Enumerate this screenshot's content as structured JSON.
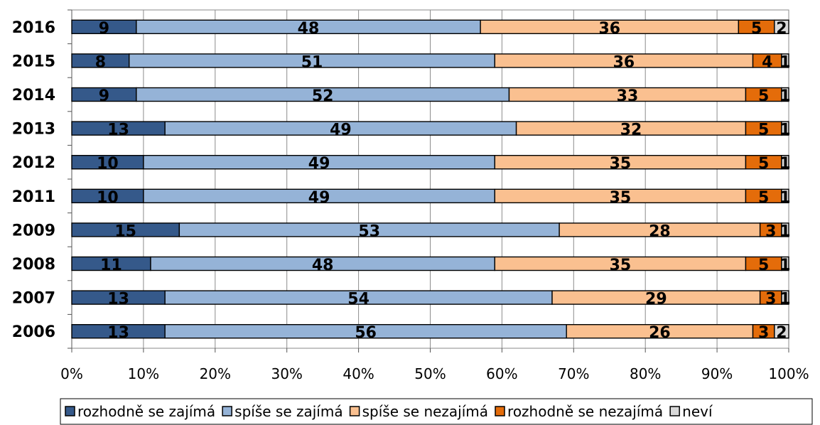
{
  "chart_data": {
    "type": "bar",
    "orientation": "horizontal",
    "stacked": "percent",
    "categories": [
      "2016",
      "2015",
      "2014",
      "2013",
      "2012",
      "2011",
      "2009",
      "2008",
      "2007",
      "2006"
    ],
    "series": [
      {
        "name": "rozhodně se zajímá",
        "color": "#35598a",
        "values": [
          9,
          8,
          9,
          13,
          10,
          10,
          15,
          11,
          13,
          13
        ]
      },
      {
        "name": "spíše se zajímá",
        "color": "#95b3d7",
        "values": [
          48,
          51,
          52,
          49,
          49,
          49,
          53,
          48,
          54,
          56
        ]
      },
      {
        "name": "spíše se nezajímá",
        "color": "#fac090",
        "values": [
          36,
          36,
          33,
          32,
          35,
          35,
          28,
          35,
          29,
          26
        ]
      },
      {
        "name": "rozhodně se nezajímá",
        "color": "#e46c0a",
        "values": [
          5,
          4,
          5,
          5,
          5,
          5,
          3,
          5,
          3,
          3
        ]
      },
      {
        "name": "neví",
        "color": "#d9d9d9",
        "values": [
          2,
          1,
          1,
          1,
          1,
          1,
          1,
          1,
          1,
          2
        ]
      }
    ],
    "x_ticks": [
      "0%",
      "10%",
      "20%",
      "30%",
      "40%",
      "50%",
      "60%",
      "70%",
      "80%",
      "90%",
      "100%"
    ],
    "xlim": [
      0,
      100
    ],
    "grid": true,
    "legend_position": "bottom"
  }
}
